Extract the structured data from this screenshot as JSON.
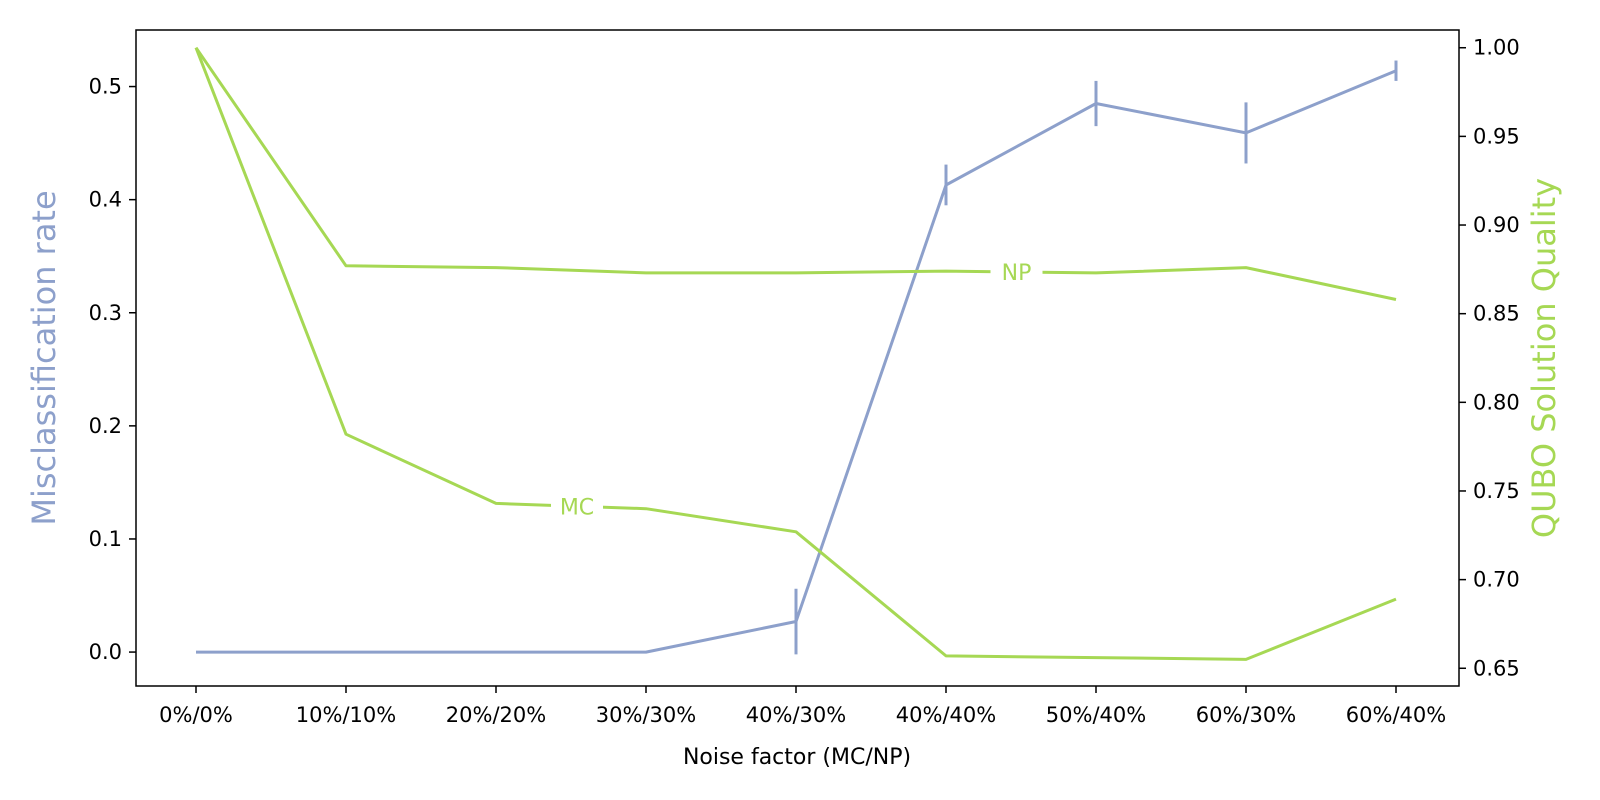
{
  "chart_data": {
    "type": "line",
    "xlabel": "Noise factor (MC/NP)",
    "categories": [
      "0%/0%",
      "10%/10%",
      "20%/20%",
      "30%/30%",
      "40%/30%",
      "40%/40%",
      "50%/40%",
      "60%/30%",
      "60%/40%"
    ],
    "y_left": {
      "label": "Misclassification rate",
      "ylim": [
        -0.03,
        0.55
      ],
      "ticks": [
        "0.0",
        "0.1",
        "0.2",
        "0.3",
        "0.4",
        "0.5"
      ],
      "color": "#8da0cb"
    },
    "y_right": {
      "label": "QUBO Solution Quality",
      "ylim": [
        0.64,
        1.01
      ],
      "ticks": [
        "0.65",
        "0.70",
        "0.75",
        "0.80",
        "0.85",
        "0.90",
        "0.95",
        "1.00"
      ],
      "color": "#a6d854"
    },
    "series": [
      {
        "axis": "left",
        "color": "#8da0cb",
        "values": [
          0.0,
          0.0,
          0.0,
          0.0,
          0.027,
          0.413,
          0.485,
          0.459,
          0.514
        ],
        "errors": [
          0.0,
          0.0,
          0.0,
          0.0,
          0.029,
          0.018,
          0.02,
          0.027,
          0.009
        ]
      },
      {
        "name": "NP",
        "axis": "right",
        "color": "#a6d854",
        "values": [
          1.0,
          0.877,
          0.876,
          0.873,
          0.873,
          0.874,
          0.873,
          0.876,
          0.858
        ],
        "label_at": 5.47
      },
      {
        "name": "MC",
        "axis": "right",
        "color": "#a6d854",
        "values": [
          1.0,
          0.782,
          0.743,
          0.74,
          0.727,
          0.657,
          0.656,
          0.655,
          0.689
        ],
        "label_at": 2.54
      }
    ]
  }
}
